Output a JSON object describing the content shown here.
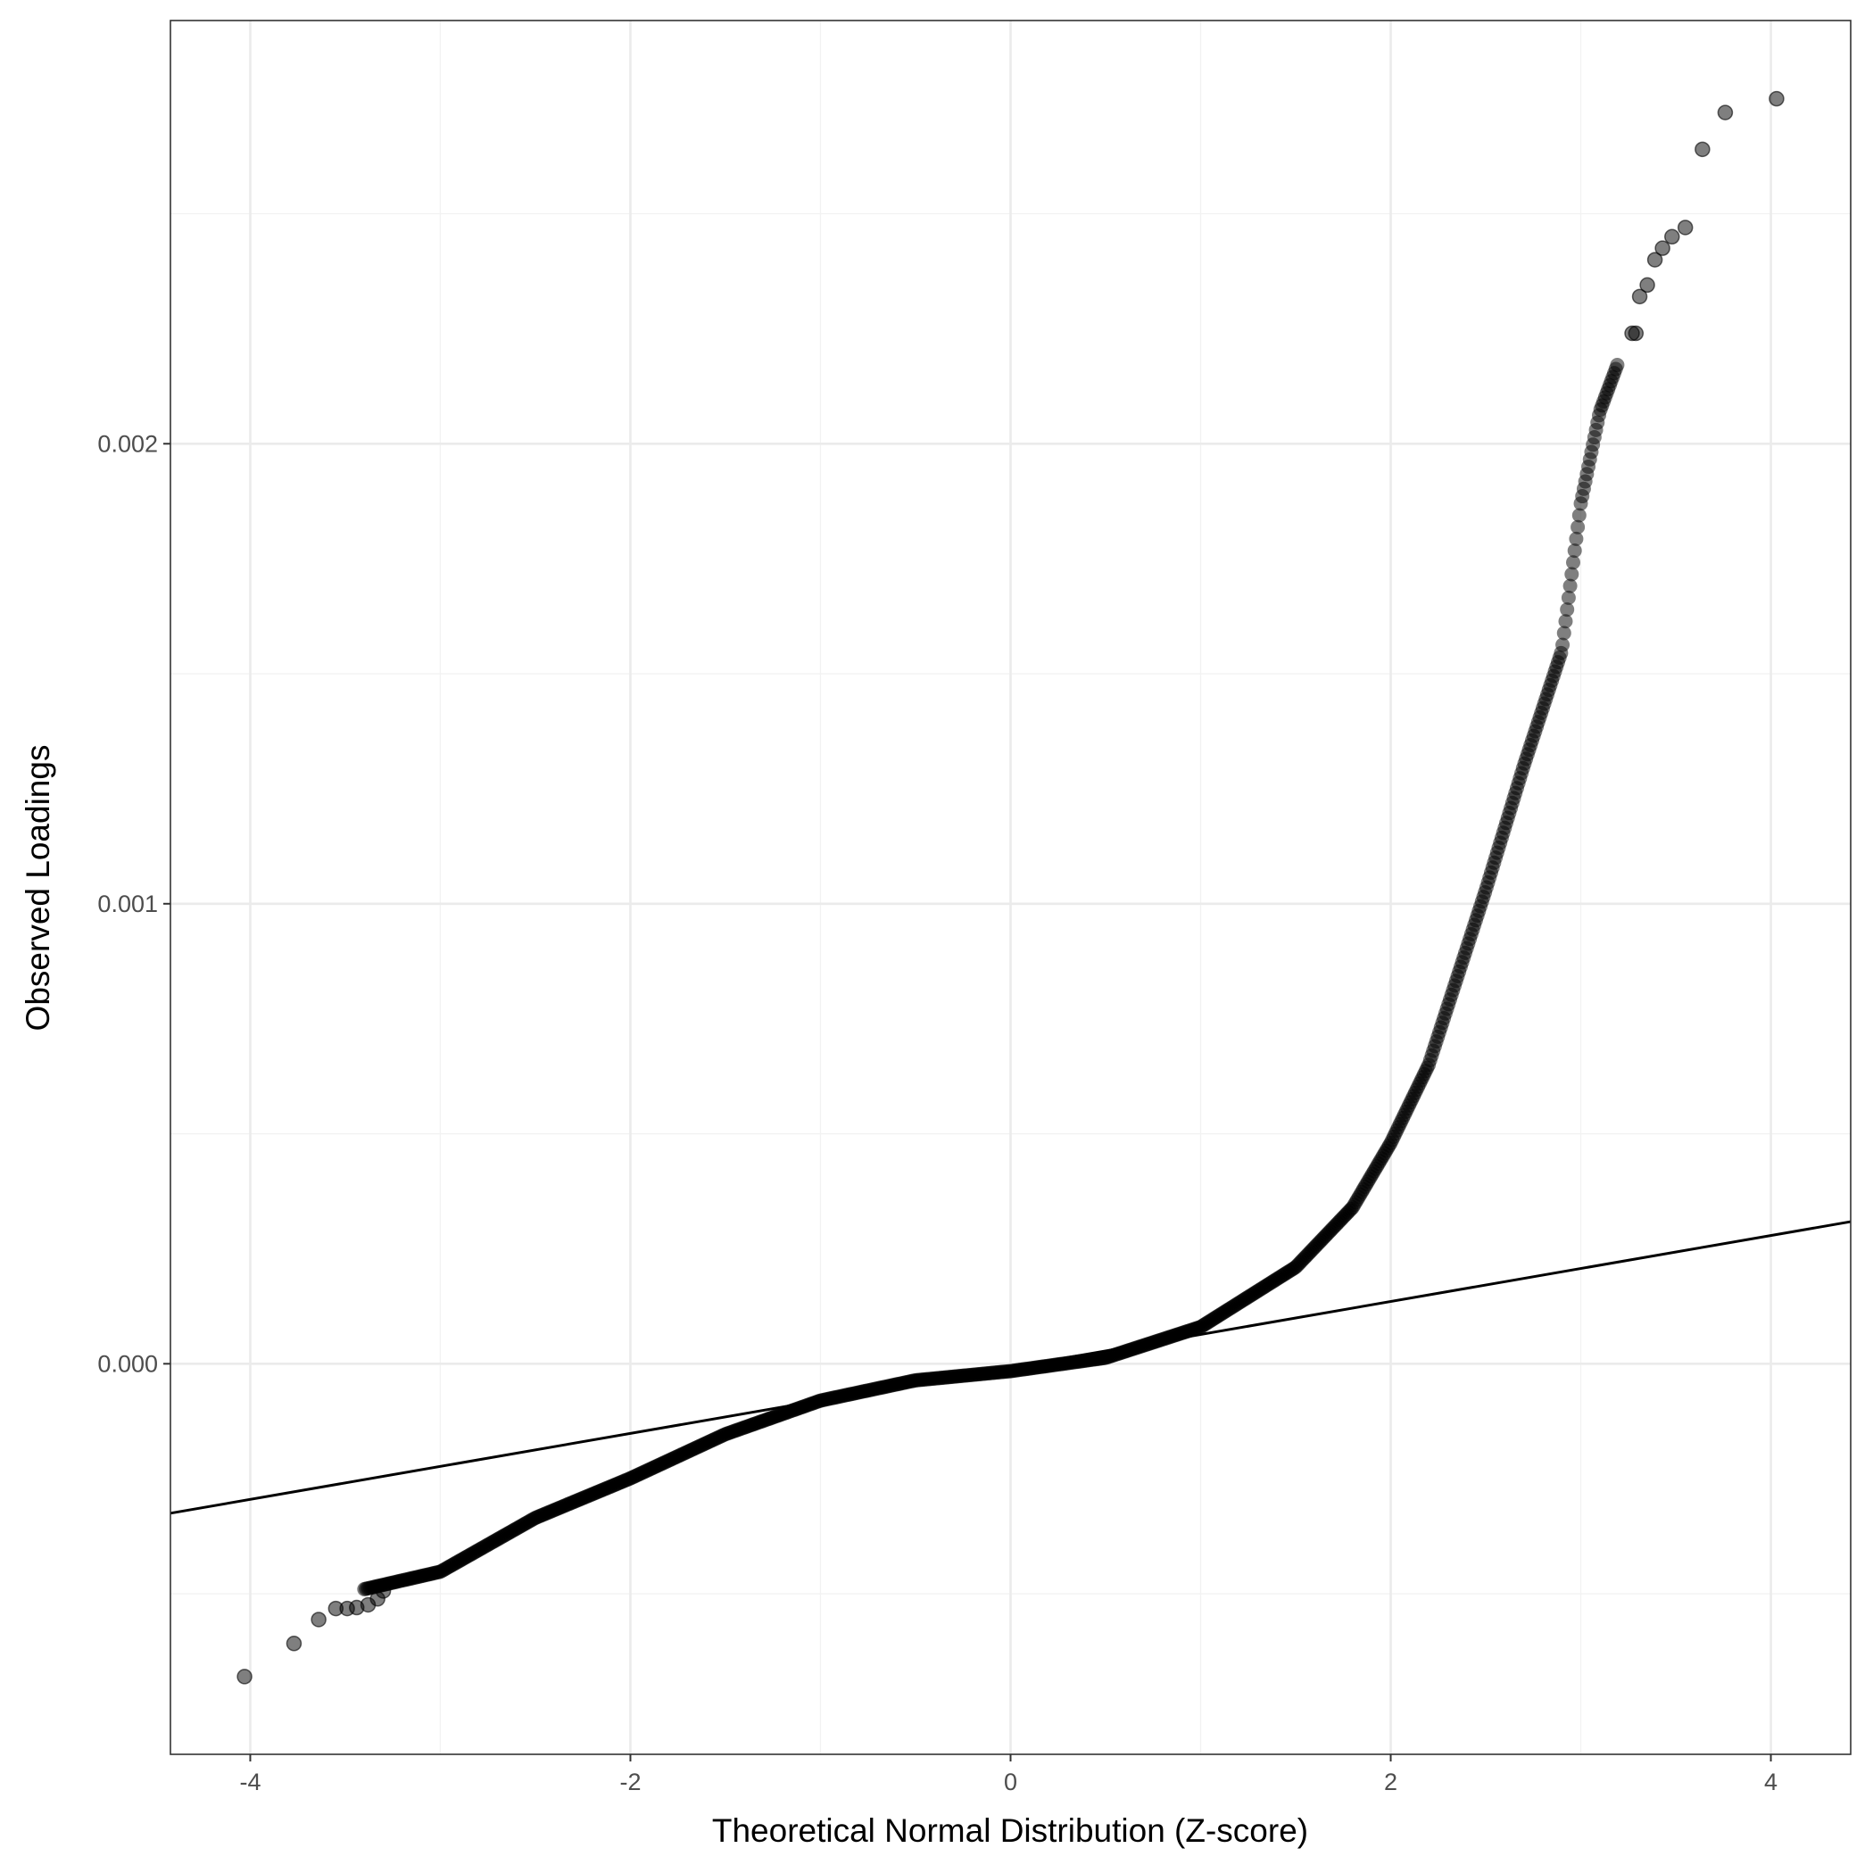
{
  "chart_data": {
    "type": "scatter",
    "title": "",
    "xlabel": "Theoretical Normal Distribution (Z-score)",
    "ylabel": "Observed Loadings",
    "xlim": [
      -4.42,
      4.42
    ],
    "ylim": [
      -0.000849,
      0.00292
    ],
    "x_ticks": [
      -4,
      -2,
      0,
      2,
      4
    ],
    "x_tick_labels": [
      "-4",
      "-2",
      "0",
      "2",
      "4"
    ],
    "y_ticks": [
      0,
      0.001,
      0.002
    ],
    "y_tick_labels": [
      "0.000",
      "0.001",
      "0.002"
    ],
    "grid": true,
    "reference_line": {
      "intercept": -8e-06,
      "slope": 7.17e-05
    },
    "curve_knots": [
      [
        -3.4,
        -0.00049
      ],
      [
        -3.0,
        -0.000452
      ],
      [
        -2.5,
        -0.000335
      ],
      [
        -2.0,
        -0.000249
      ],
      [
        -1.5,
        -0.000153
      ],
      [
        -1.0,
        -8e-05
      ],
      [
        -0.5,
        -3.6e-05
      ],
      [
        0.0,
        -1.6e-05
      ],
      [
        0.5,
        1.3e-05
      ],
      [
        1.0,
        8e-05
      ],
      [
        1.5,
        0.00021
      ],
      [
        1.8,
        0.00034
      ],
      [
        2.0,
        0.00048
      ],
      [
        2.2,
        0.00065
      ],
      [
        2.5,
        0.00103
      ],
      [
        2.7,
        0.0013
      ],
      [
        2.9,
        0.00155
      ],
      [
        3.0,
        0.00187
      ],
      [
        3.1,
        0.00207
      ],
      [
        3.2,
        0.00218
      ]
    ],
    "outlier_points": [
      [
        -4.03,
        -0.00068
      ],
      [
        -3.77,
        -0.000608
      ],
      [
        -3.64,
        -0.000556
      ],
      [
        -3.55,
        -0.000532
      ],
      [
        -3.49,
        -0.000532
      ],
      [
        -3.44,
        -0.00053
      ],
      [
        -3.38,
        -0.000524
      ],
      [
        -3.33,
        -0.000511
      ],
      [
        -3.3,
        -0.000494
      ],
      [
        3.27,
        0.00224
      ],
      [
        3.29,
        0.00224
      ],
      [
        3.31,
        0.00232
      ],
      [
        3.35,
        0.002345
      ],
      [
        3.39,
        0.0024
      ],
      [
        3.43,
        0.002425
      ],
      [
        3.48,
        0.00245
      ],
      [
        3.55,
        0.00247
      ],
      [
        3.64,
        0.00264
      ],
      [
        3.76,
        0.00272
      ],
      [
        4.03,
        0.00275
      ]
    ]
  }
}
